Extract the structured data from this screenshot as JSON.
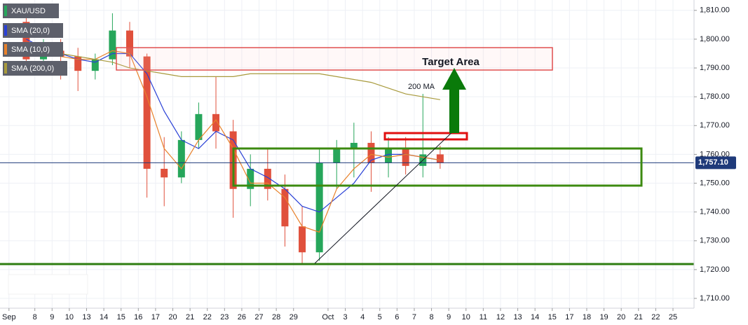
{
  "chart_data": {
    "type": "candlestick",
    "symbol": "XAU/USD",
    "x": [
      0.5,
      1.5,
      2.5,
      3.5,
      4.5,
      5.5,
      6.5,
      7.5,
      8.5,
      9.5,
      10.5,
      11.5,
      12.5,
      13.5,
      14.5,
      15.5,
      16.5,
      17.5,
      18.5,
      19.5,
      20.5,
      21.5,
      22.5,
      23.5,
      24.5
    ],
    "open": [
      1806,
      1793,
      1796,
      1794,
      1789,
      1793,
      1803,
      1794,
      1755,
      1752,
      1765,
      1774,
      1768,
      1748,
      1755,
      1748,
      1735,
      1726,
      1757,
      1762,
      1764,
      1757,
      1762,
      1756,
      1760
    ],
    "high": [
      1809,
      1800,
      1800,
      1797,
      1795,
      1809,
      1806,
      1795,
      1766,
      1768,
      1778,
      1787,
      1772,
      1760,
      1762,
      1753,
      1742,
      1762,
      1765,
      1771,
      1768,
      1766,
      1766,
      1781,
      1763
    ],
    "low": [
      1790,
      1788,
      1786,
      1782,
      1786,
      1791,
      1790,
      1745,
      1742,
      1750,
      1762,
      1762,
      1738,
      1742,
      1744,
      1728,
      1722,
      1723,
      1748,
      1752,
      1747,
      1752,
      1753,
      1752,
      1755
    ],
    "close": [
      1793,
      1796,
      1794,
      1789,
      1793,
      1803,
      1794,
      1755,
      1752,
      1765,
      1774,
      1768,
      1748,
      1755,
      1748,
      1735,
      1726,
      1757,
      1762,
      1764,
      1757,
      1762,
      1756,
      1760,
      1757
    ],
    "up_color": "#26a65b",
    "down_color": "#e0503c",
    "series": [
      {
        "name": "SMA (20,0)",
        "color": "#2940d6",
        "values": [
          1800,
          1797,
          1795,
          1793,
          1792,
          1795,
          1795,
          1788,
          1775,
          1765,
          1762,
          1768,
          1765,
          1755,
          1752,
          1748,
          1742,
          1740,
          1745,
          1750,
          1758,
          1760,
          1760,
          1759,
          1758
        ]
      },
      {
        "name": "SMA (10,0)",
        "color": "#e8812a",
        "values": [
          1798,
          1796,
          1794,
          1793,
          1793,
          1796,
          1795,
          1780,
          1762,
          1755,
          1765,
          1772,
          1762,
          1750,
          1750,
          1745,
          1735,
          1733,
          1748,
          1755,
          1760,
          1759,
          1760,
          1759,
          1758
        ]
      },
      {
        "name": "SMA (200,0)",
        "color": "#a89a3c",
        "values": [
          1797,
          1796,
          1795,
          1794,
          1793,
          1792,
          1790,
          1789,
          1788,
          1787,
          1787,
          1787,
          1787,
          1788,
          1788,
          1788,
          1788,
          1788,
          1787,
          1786,
          1785,
          1783,
          1781,
          1780,
          1779
        ]
      }
    ],
    "last_price": {
      "value": 1757.1,
      "label": "1,757.10"
    },
    "annotations": [
      "Target Area",
      "200 MA"
    ],
    "xlim": [
      -1.02,
      39.22
    ],
    "ylim": [
      1706.6,
      1813.6
    ],
    "grid": true,
    "xticks": [
      {
        "value": -0.5,
        "label": "Sep"
      },
      1,
      2,
      3,
      4,
      5,
      6,
      7,
      8,
      9,
      10,
      11,
      12,
      13,
      14,
      15,
      16,
      {
        "value": 18,
        "label": "Oct"
      },
      19,
      20,
      21,
      22,
      23,
      24,
      25,
      26,
      27,
      28,
      29,
      30,
      31,
      32,
      33,
      34,
      35,
      36,
      37,
      38
    ],
    "xtick_labels": [
      "Sep",
      "8",
      "9",
      "10",
      "13",
      "14",
      "15",
      "16",
      "17",
      "20",
      "21",
      "22",
      "23",
      "26",
      "27",
      "28",
      "29",
      "Oct",
      "3",
      "4",
      "5",
      "6",
      "7",
      "8",
      "9",
      "10",
      "11",
      "12",
      "13",
      "14",
      "15",
      "17",
      "18",
      "19",
      "20",
      "21",
      "22",
      "25"
    ],
    "yticks": [
      {
        "value": 1710,
        "label": "1,710.00"
      },
      {
        "value": 1720,
        "label": "1,720.00"
      },
      {
        "value": 1730,
        "label": "1,730.00"
      },
      {
        "value": 1740,
        "label": "1,740.00"
      },
      {
        "value": 1750,
        "label": "1,750.00"
      },
      {
        "value": 1760,
        "label": "1,760.00"
      },
      {
        "value": 1770,
        "label": "1,770.00"
      },
      {
        "value": 1780,
        "label": "1,780.00"
      },
      {
        "value": 1790,
        "label": "1,790.00"
      },
      {
        "value": 1800,
        "label": "1,800.00"
      },
      {
        "value": 1810,
        "label": "1,810.00"
      }
    ]
  }
}
